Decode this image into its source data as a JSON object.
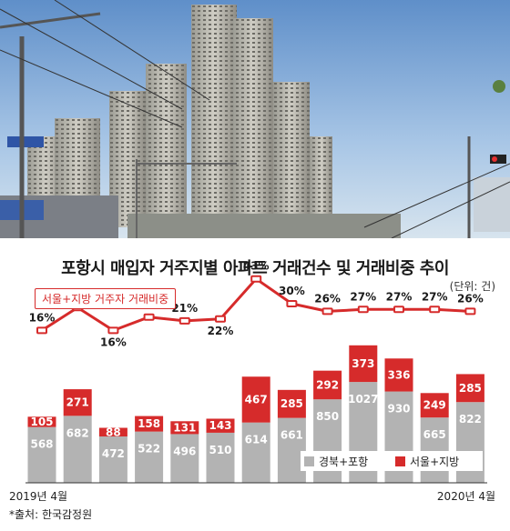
{
  "colors": {
    "gray_bar": "#b3b3b3",
    "red_bar": "#d62b2b",
    "line": "#d62b2b",
    "text": "#222222"
  },
  "chart_data": {
    "type": "bar",
    "stacked": true,
    "title": "포항시 매입자 거주지별 아파트 거래건수 및 거래비중 추이",
    "unit_note": "(단위: 건)",
    "x_start_label": "2019년 4월",
    "x_end_label": "2020년 4월",
    "categories": [
      "",
      "",
      "",
      "",
      "",
      "",
      "",
      "",
      "",
      "",
      "",
      "",
      ""
    ],
    "series": [
      {
        "name": "경북+포항",
        "values": [
          568,
          682,
          472,
          522,
          496,
          510,
          614,
          661,
          850,
          1027,
          930,
          665,
          822
        ]
      },
      {
        "name": "서울+지방",
        "values": [
          105,
          271,
          88,
          158,
          131,
          143,
          467,
          285,
          292,
          373,
          336,
          249,
          285
        ]
      }
    ],
    "line_series": {
      "name": "서울+지방 거주자 거래비중",
      "unit": "%",
      "values": [
        16,
        28,
        16,
        23,
        21,
        22,
        43,
        30,
        26,
        27,
        27,
        27,
        26
      ]
    },
    "grid": false,
    "legend_position": "bottom-right"
  },
  "source": "*출처: 한국감정원"
}
